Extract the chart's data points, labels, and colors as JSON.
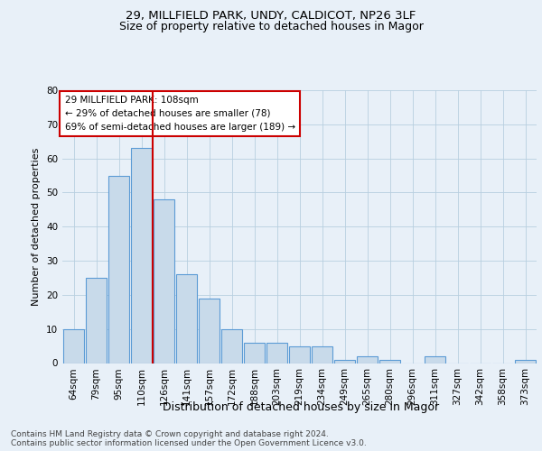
{
  "title1": "29, MILLFIELD PARK, UNDY, CALDICOT, NP26 3LF",
  "title2": "Size of property relative to detached houses in Magor",
  "xlabel": "Distribution of detached houses by size in Magor",
  "ylabel": "Number of detached properties",
  "categories": [
    "64sqm",
    "79sqm",
    "95sqm",
    "110sqm",
    "126sqm",
    "141sqm",
    "157sqm",
    "172sqm",
    "188sqm",
    "203sqm",
    "219sqm",
    "234sqm",
    "249sqm",
    "265sqm",
    "280sqm",
    "296sqm",
    "311sqm",
    "327sqm",
    "342sqm",
    "358sqm",
    "373sqm"
  ],
  "values": [
    10,
    25,
    55,
    63,
    48,
    26,
    19,
    10,
    6,
    6,
    5,
    5,
    1,
    2,
    1,
    0,
    2,
    0,
    0,
    0,
    1
  ],
  "bar_color": "#c8daea",
  "bar_edge_color": "#5b9bd5",
  "vline_color": "#cc0000",
  "vline_x": 3.5,
  "annotation_text": "29 MILLFIELD PARK: 108sqm\n← 29% of detached houses are smaller (78)\n69% of semi-detached houses are larger (189) →",
  "annotation_box_color": "#ffffff",
  "annotation_box_edge": "#cc0000",
  "ylim": [
    0,
    80
  ],
  "yticks": [
    0,
    10,
    20,
    30,
    40,
    50,
    60,
    70,
    80
  ],
  "grid_color": "#b8cfe0",
  "footer1": "Contains HM Land Registry data © Crown copyright and database right 2024.",
  "footer2": "Contains public sector information licensed under the Open Government Licence v3.0.",
  "bg_color": "#e8f0f8",
  "plot_bg_color": "#e8f0f8",
  "title1_fontsize": 9.5,
  "title2_fontsize": 9,
  "ylabel_fontsize": 8,
  "xlabel_fontsize": 9,
  "tick_fontsize": 7.5,
  "annot_fontsize": 7.5,
  "footer_fontsize": 6.5
}
